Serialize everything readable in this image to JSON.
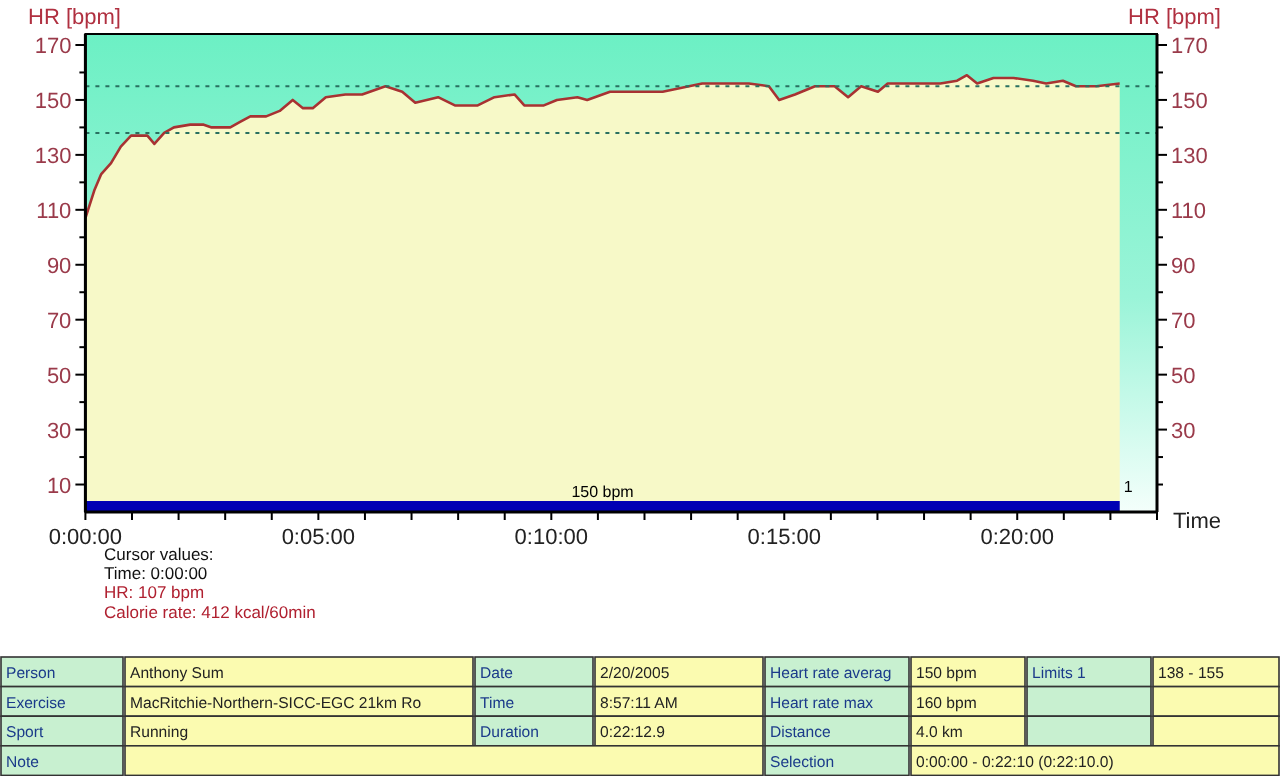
{
  "chart_data": {
    "type": "line",
    "xlabel": "Time",
    "ylabel": "HR [bpm]",
    "y2label": "HR [bpm]",
    "xlim": [
      0,
      23
    ],
    "xticks": [
      {
        "value": 0,
        "label": "0:00:00"
      },
      {
        "value": 1,
        "label": null
      },
      {
        "value": 2,
        "label": null
      },
      {
        "value": 3,
        "label": null
      },
      {
        "value": 4,
        "label": null
      },
      {
        "value": 5,
        "label": "0:05:00"
      },
      {
        "value": 6,
        "label": null
      },
      {
        "value": 7,
        "label": null
      },
      {
        "value": 8,
        "label": null
      },
      {
        "value": 9,
        "label": null
      },
      {
        "value": 10,
        "label": "0:10:00"
      },
      {
        "value": 11,
        "label": null
      },
      {
        "value": 12,
        "label": null
      },
      {
        "value": 13,
        "label": null
      },
      {
        "value": 14,
        "label": null
      },
      {
        "value": 15,
        "label": "0:15:00"
      },
      {
        "value": 16,
        "label": null
      },
      {
        "value": 17,
        "label": null
      },
      {
        "value": 18,
        "label": null
      },
      {
        "value": 19,
        "label": null
      },
      {
        "value": 20,
        "label": "0:20:00"
      },
      {
        "value": 21,
        "label": null
      },
      {
        "value": 22,
        "label": null
      },
      {
        "value": 23,
        "label": null
      }
    ],
    "ylim": [
      0,
      174
    ],
    "yticks": [
      10,
      {
        "value": 20,
        "label": null
      },
      30,
      {
        "value": 40,
        "label": null
      },
      50,
      {
        "value": 60,
        "label": null
      },
      70,
      {
        "value": 80,
        "label": null
      },
      90,
      {
        "value": 100,
        "label": null
      },
      110,
      {
        "value": 120,
        "label": null
      },
      130,
      {
        "value": 140,
        "label": null
      },
      150,
      {
        "value": 160,
        "label": null
      },
      170
    ],
    "y2lim": [
      0,
      174
    ],
    "y2ticks": [
      {
        "value": 10,
        "label": null
      },
      {
        "value": 20,
        "label": null
      },
      30,
      {
        "value": 40,
        "label": null
      },
      50,
      {
        "value": 60,
        "label": null
      },
      70,
      {
        "value": 80,
        "label": null
      },
      90,
      {
        "value": 100,
        "label": null
      },
      110,
      {
        "value": 120,
        "label": null
      },
      130,
      {
        "value": 140,
        "label": null
      },
      150,
      {
        "value": 160,
        "label": null
      },
      170
    ],
    "series": [
      {
        "color": "#a83232",
        "x": [
          0,
          0.19,
          0.34,
          0.55,
          0.76,
          0.98,
          1.19,
          1.33,
          1.48,
          1.69,
          1.9,
          2.25,
          2.54,
          2.71,
          3.11,
          3.32,
          3.54,
          3.88,
          4.17,
          4.45,
          4.67,
          4.88,
          5.16,
          5.58,
          5.94,
          6.44,
          6.8,
          7.08,
          7.57,
          7.93,
          8.42,
          8.78,
          9.21,
          9.42,
          9.84,
          10.12,
          10.56,
          10.77,
          11.26,
          11.83,
          12.39,
          13.24,
          14.24,
          14.67,
          14.89,
          15.23,
          15.66,
          16.08,
          16.37,
          16.65,
          17.01,
          17.22,
          18.35,
          18.71,
          18.92,
          19.14,
          19.49,
          19.92,
          20.34,
          20.62,
          20.98,
          21.26,
          21.7,
          22.2
        ],
        "values": [
          107,
          117,
          123,
          127,
          133,
          137,
          137,
          137,
          134,
          138,
          140,
          141,
          141,
          140,
          140,
          142,
          144,
          144,
          146,
          150,
          147,
          147,
          151,
          152,
          152,
          155,
          153,
          149,
          151,
          148,
          148,
          151,
          152,
          148,
          148,
          150,
          151,
          150,
          153,
          153,
          153,
          156,
          156,
          155,
          150,
          152,
          155,
          155,
          151,
          155,
          153,
          156,
          156,
          157,
          159,
          156,
          158,
          158,
          157,
          156,
          157,
          155,
          155,
          156
        ]
      }
    ],
    "ref_lines": [
      {
        "axis": "y",
        "value": 155,
        "color": "#2a7060",
        "line_style": "dotted"
      },
      {
        "axis": "y",
        "value": 138,
        "color": "#2a7060",
        "line_style": "dotted"
      }
    ],
    "bands": [
      {
        "axis": "y",
        "from": 0,
        "to": 4,
        "label": "150 bpm",
        "color": "#0000b4"
      }
    ],
    "annotations": [
      "Cursor values:",
      "Time: 0:00:00",
      "HR: 107 bpm",
      "Calorie rate: 412 kcal/60min",
      "Person",
      "Anthony Sum",
      "Date",
      "2/20/2005",
      "Heart rate averag",
      "150 bpm",
      "Limits 1",
      "138 - 155",
      "Exercise",
      "MacRitchie-Northern-SICC-EGC 21km Ro",
      "Time",
      "8:57:11 AM",
      "Heart rate max",
      "160 bpm",
      "Sport",
      "Running",
      "Duration",
      "0:22:12.9",
      "Distance",
      "4.0 km",
      "Note",
      "Selection",
      "0:00:00 - 0:22:10 (0:22:10.0)",
      "1"
    ]
  }
}
